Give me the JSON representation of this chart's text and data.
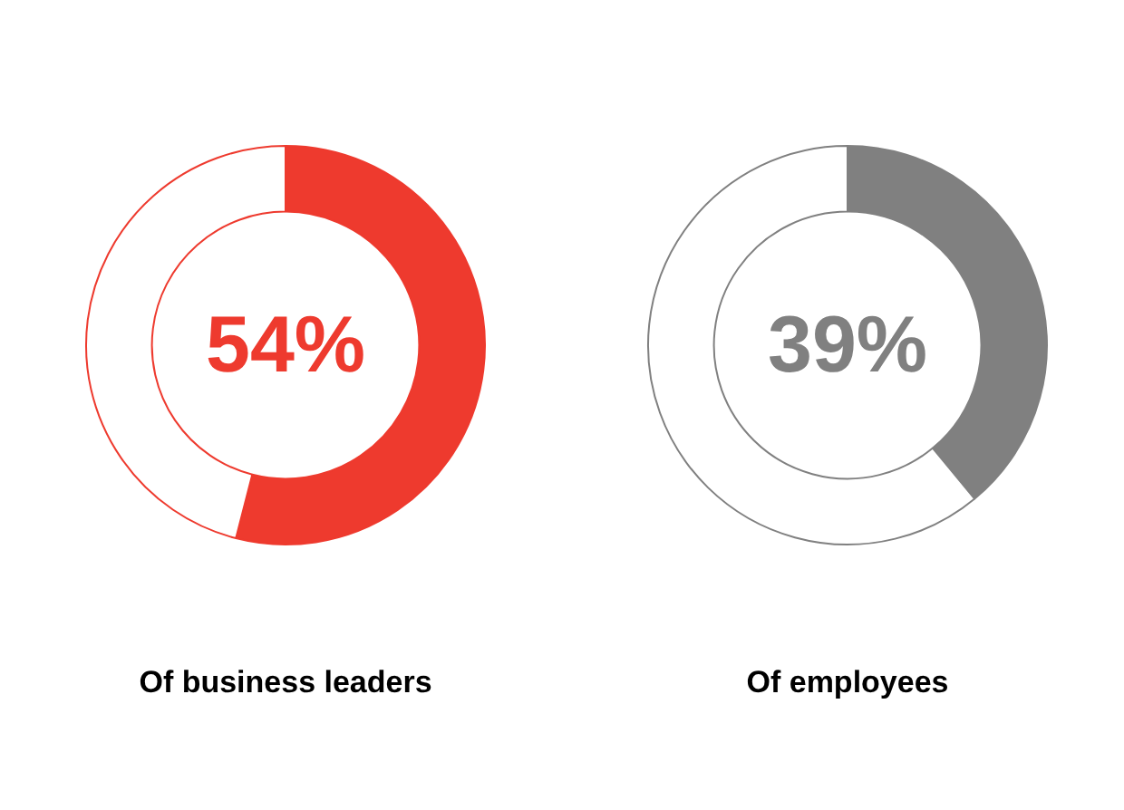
{
  "chart_data": [
    {
      "type": "donut",
      "title": "Of business leaders",
      "categories": [
        null,
        null
      ],
      "values": [
        54,
        46
      ],
      "colors": [
        "#ee3a2e",
        "#ffffff"
      ],
      "value_labels": [
        "54%",
        null
      ]
    },
    {
      "type": "donut",
      "title": "Of employees",
      "categories": [
        null,
        null
      ],
      "values": [
        39,
        61
      ],
      "colors": [
        "#808080",
        "#ffffff"
      ],
      "value_labels": [
        "39%",
        null
      ]
    }
  ]
}
